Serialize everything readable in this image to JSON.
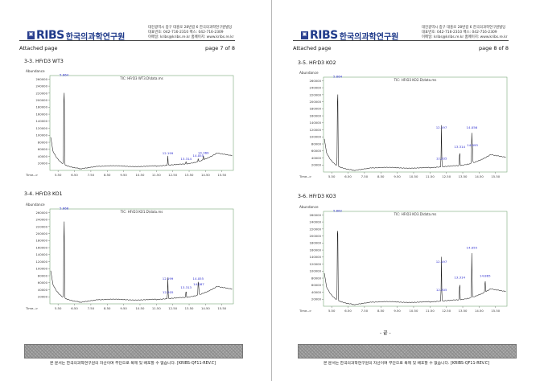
{
  "header": {
    "logo_text": "RIBS",
    "logo_kr": "한국의과학연구원",
    "address_lines": [
      "대전광역시 중구 대흥로 28번길 6 한국의과학연구원빌딩",
      "대표번호: 042-716-2310 팩스: 042-716-2309",
      "이메일: kribs@kribs.re.kr 홈페이지: www.kribs.re.kr"
    ],
    "attached": "Attached page"
  },
  "pages": [
    {
      "page_no": "page 7 of 8",
      "sections": [
        {
          "label": "3-3. HFrD3 WT3",
          "tic": "TIC: HFrD3 WT3.D\\data.ms"
        },
        {
          "label": "3-4. HFrD3 KO1",
          "tic": "TIC: HFrD3 KO1.D\\data.ms"
        }
      ]
    },
    {
      "page_no": "page 8 of 8",
      "sections": [
        {
          "label": "3-5. HFrD3 KO2",
          "tic": "TIC: HFrD3 KO2.D\\data.ms"
        },
        {
          "label": "3-6. HFrD3 KO3",
          "tic": "TIC: HFrD3 KO3.D\\data.ms"
        }
      ],
      "end_mark": "- 끝 -"
    }
  ],
  "footer_text": "본 문서는 한국의과학연구원의 자산이며 무단으로 복제 및 배포할 수 없습니다. [KRIBS-QF11-REV.C]",
  "chart_axes": {
    "ylabel": "Abundance",
    "xlabel": "Time-->",
    "y_ticks": [
      "20000",
      "40000",
      "60000",
      "80000",
      "100000",
      "120000",
      "140000",
      "160000",
      "180000",
      "200000",
      "220000",
      "240000",
      "260000"
    ],
    "x_ticks": [
      "5.50",
      "6.50",
      "7.50",
      "8.50",
      "9.50",
      "10.50",
      "11.50",
      "12.50",
      "13.50",
      "14.50",
      "15.50"
    ]
  },
  "chart_data": [
    {
      "type": "line",
      "title": "TIC: HFrD3 WT3.D\\data.ms",
      "xlabel": "Time-->",
      "ylabel": "Abundance",
      "xlim": [
        5.0,
        16.2
      ],
      "ylim": [
        0,
        270000
      ],
      "peaks": [
        {
          "x": 5.864,
          "y": 265000,
          "label": "5.864"
        },
        {
          "x": 12.199,
          "y": 42000,
          "label": "12.199"
        },
        {
          "x": 13.314,
          "y": 26000,
          "label": "13.314"
        },
        {
          "x": 14.055,
          "y": 35000,
          "label": "14.055"
        },
        {
          "x": 14.369,
          "y": 43000,
          "label": "14.369"
        }
      ]
    },
    {
      "type": "line",
      "title": "TIC: HFrD3 KO1.D\\data.ms",
      "xlabel": "Time-->",
      "ylabel": "Abundance",
      "xlim": [
        5.0,
        16.2
      ],
      "ylim": [
        0,
        270000
      ],
      "peaks": [
        {
          "x": 5.866,
          "y": 265000,
          "label": "5.866"
        },
        {
          "x": 12.199,
          "y": 65000,
          "label": "12.199"
        },
        {
          "x": 12.205,
          "y": 26000,
          "label": "12.205"
        },
        {
          "x": 13.313,
          "y": 40000,
          "label": "13.313"
        },
        {
          "x": 14.055,
          "y": 65000,
          "label": "14.055"
        },
        {
          "x": 14.087,
          "y": 49000,
          "label": "14.087"
        }
      ]
    },
    {
      "type": "line",
      "title": "TIC: HFrD3 KO2.D\\data.ms",
      "xlabel": "Time-->",
      "ylabel": "Abundance",
      "xlim": [
        5.0,
        16.2
      ],
      "ylim": [
        0,
        270000
      ],
      "peaks": [
        {
          "x": 5.864,
          "y": 265000,
          "label": "5.864"
        },
        {
          "x": 12.197,
          "y": 120000,
          "label": "12.197"
        },
        {
          "x": 12.205,
          "y": 32000,
          "label": "12.205"
        },
        {
          "x": 13.314,
          "y": 65000,
          "label": "13.314"
        },
        {
          "x": 14.056,
          "y": 120000,
          "label": "14.056"
        },
        {
          "x": 14.093,
          "y": 70000,
          "label": "14.093"
        }
      ]
    },
    {
      "type": "line",
      "title": "TIC: HFrD3 KO3.D\\data.ms",
      "xlabel": "Time-->",
      "ylabel": "Abundance",
      "xlim": [
        5.0,
        16.2
      ],
      "ylim": [
        0,
        270000
      ],
      "peaks": [
        {
          "x": 5.862,
          "y": 265000,
          "label": "5.862"
        },
        {
          "x": 12.197,
          "y": 120000,
          "label": "12.197"
        },
        {
          "x": 12.205,
          "y": 40000,
          "label": "12.205"
        },
        {
          "x": 13.314,
          "y": 75000,
          "label": "13.314"
        },
        {
          "x": 14.055,
          "y": 160000,
          "label": "14.055"
        },
        {
          "x": 14.865,
          "y": 80000,
          "label": "14.865"
        }
      ]
    }
  ]
}
